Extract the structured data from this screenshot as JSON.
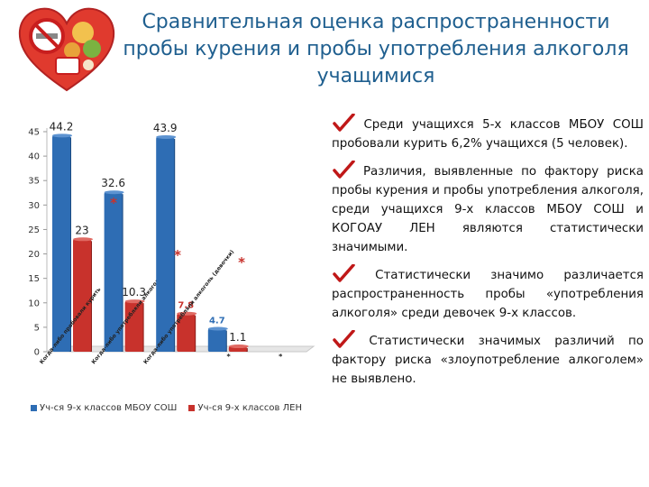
{
  "title": "Сравнительная оценка распространенности пробы курения и пробы употребления алкоголя учащимися",
  "colors": {
    "title": "#1f5f8f",
    "blue": "#2e6db4",
    "red": "#c8322c",
    "check": "#c01818"
  },
  "bullets": [
    "Среди учащихся 5-х классов МБОУ СОШ пробовали курить 6,2% учащихся (5 человек).",
    "Различия, выявленные по фактору риска пробы курения и пробы употребления алкоголя, среди учащихся 9-х классов МБОУ СОШ и КОГОАУ ЛЕН являются статистически значимыми.",
    "Статистически значимо различается распространенность пробы «употребления алкоголя» среди девочек 9-х классов.",
    "Статистически значимых различий по фактору риска «злоупотребление алкоголем» не выявлено."
  ],
  "chart_data": {
    "type": "bar",
    "ylim": [
      0,
      45
    ],
    "yticks": [
      "0",
      "5",
      "10",
      "15",
      "20",
      "25",
      "30",
      "35",
      "40",
      "45"
    ],
    "categories": [
      "Когда-либо пробовали курить",
      "Когда-либо употребляли алкоголь",
      "Когда-либо употребляли алкоголь (девочки)",
      "*",
      "*"
    ],
    "series": [
      {
        "name": "Уч-ся 9-х классов МБОУ СОШ",
        "color": "#2e6db4",
        "values": [
          44.2,
          32.6,
          43.9,
          4.7,
          null
        ],
        "labels": [
          "44.2",
          "32.6",
          "43.9",
          "4.7",
          ""
        ]
      },
      {
        "name": "Уч-ся 9-х классов ЛЕН",
        "color": "#c8322c",
        "values": [
          23,
          10.3,
          7.8,
          1.1,
          null
        ],
        "labels": [
          "23",
          "10.3",
          "7.8",
          "1.1",
          ""
        ]
      }
    ],
    "annotations": [
      "*",
      "*",
      "*"
    ],
    "legend": "bottom"
  }
}
